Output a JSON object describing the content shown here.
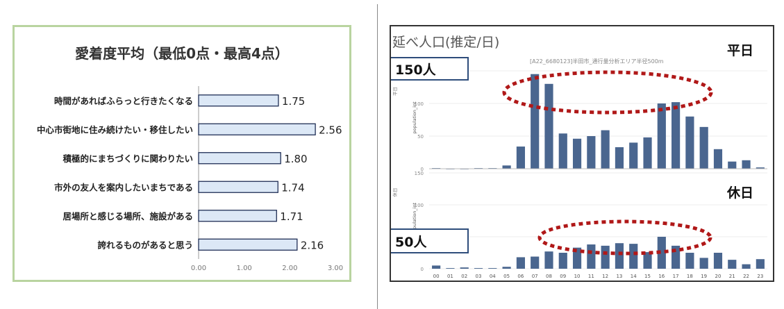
{
  "left_chart": {
    "title": "愛着度平均（最低0点・最高4点）",
    "chart_data": {
      "type": "bar",
      "orientation": "horizontal",
      "title": "愛着度平均（最低0点・最高4点）",
      "categories": [
        "時間があればふらっと行きたくなる",
        "中心市街地に住み続けたい・移住したい",
        "積極的にまちづくりに関わりたい",
        "市外の友人を案内したいまちである",
        "居場所と感じる場所、施設がある",
        "誇れるものがあると思う"
      ],
      "values": [
        1.75,
        2.56,
        1.8,
        1.74,
        1.71,
        2.16
      ],
      "value_labels": [
        "1.75",
        "2.56",
        "1.80",
        "1.74",
        "1.71",
        "2.16"
      ],
      "xlim": [
        0,
        3
      ],
      "xticks": [
        "0.00",
        "1.00",
        "2.00",
        "3.00"
      ],
      "bar_color": "#dce8f6",
      "bar_edge": "#1f2e55"
    }
  },
  "right_chart": {
    "title": "延べ人口(推定/日)",
    "caption": "[A22_6680123]半田市_通行量分析エリア半径500m",
    "weekday_label": "平日",
    "holiday_label": "休日",
    "weekday_callout": "150人",
    "holiday_callout": "50人",
    "y_axis_label": "population_int",
    "weekday_side_label": "平日",
    "holiday_side_label": "休日",
    "chart_data": {
      "type": "bar",
      "categories": [
        "00",
        "01",
        "02",
        "03",
        "04",
        "05",
        "06",
        "07",
        "08",
        "09",
        "10",
        "11",
        "12",
        "13",
        "14",
        "15",
        "16",
        "17",
        "18",
        "19",
        "20",
        "21",
        "22",
        "23"
      ],
      "series": [
        {
          "name": "平日",
          "values": [
            1,
            0,
            0,
            1,
            1,
            5,
            34,
            145,
            130,
            54,
            46,
            50,
            59,
            33,
            40,
            48,
            100,
            102,
            80,
            64,
            30,
            11,
            13,
            2
          ]
        },
        {
          "name": "休日",
          "values": [
            5,
            1,
            2,
            1,
            1,
            3,
            18,
            19,
            27,
            25,
            33,
            38,
            36,
            40,
            39,
            26,
            50,
            36,
            25,
            17,
            25,
            14,
            7,
            15
          ]
        }
      ],
      "ylim": [
        0,
        150
      ],
      "yticks": [
        "0",
        "50",
        "100",
        "150"
      ],
      "bar_color": "#4a668f",
      "highlight_color": "#b01818"
    }
  }
}
